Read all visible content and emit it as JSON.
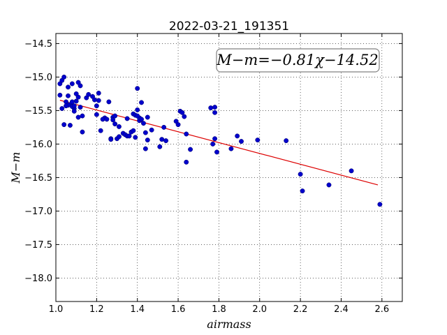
{
  "chart_data": {
    "type": "scatter",
    "title": "2022-03-21_191351",
    "xlabel": "airmass",
    "ylabel": "M−m",
    "xlim": [
      1.0,
      2.7
    ],
    "ylim": [
      -18.35,
      -14.35
    ],
    "y_inverted": true,
    "x_ticks": [
      1.0,
      1.2,
      1.4,
      1.6,
      1.8,
      2.0,
      2.2,
      2.4,
      2.6
    ],
    "x_tick_labels": [
      "1.0",
      "1.2",
      "1.4",
      "1.6",
      "1.8",
      "2.0",
      "2.2",
      "2.4",
      "2.6"
    ],
    "y_ticks": [
      -14.5,
      -15.0,
      -15.5,
      -16.0,
      -16.5,
      -17.0,
      -17.5,
      -18.0
    ],
    "y_tick_labels": [
      "−14.5",
      "−15.0",
      "−15.5",
      "−16.0",
      "−16.5",
      "−17.0",
      "−17.5",
      "−18.0"
    ],
    "grid": true,
    "annotation": "M−m=−0.81χ−14.52",
    "annotation_position": "top-right",
    "points_color": "#0000cc",
    "fit_color": "#dd0000",
    "fit": {
      "slope": -0.81,
      "intercept": -14.52,
      "x_range": [
        1.02,
        2.58
      ]
    },
    "x": [
      1.02,
      1.03,
      1.02,
      1.03,
      1.04,
      1.05,
      1.06,
      1.07,
      1.08,
      1.09,
      1.1,
      1.11,
      1.12,
      1.04,
      1.06,
      1.07,
      1.08,
      1.09,
      1.1,
      1.11,
      1.12,
      1.05,
      1.06,
      1.08,
      1.09,
      1.11,
      1.13,
      1.13,
      1.15,
      1.16,
      1.18,
      1.19,
      1.2,
      1.21,
      1.21,
      1.22,
      1.24,
      1.26,
      1.27,
      1.28,
      1.29,
      1.3,
      1.31,
      1.31,
      1.33,
      1.34,
      1.35,
      1.35,
      1.36,
      1.37,
      1.38,
      1.39,
      1.4,
      1.4,
      1.41,
      1.41,
      1.42,
      1.43,
      1.44,
      1.44,
      1.45,
      1.45,
      1.47,
      1.51,
      1.52,
      1.53,
      1.54,
      1.59,
      1.6,
      1.61,
      1.62,
      1.63,
      1.64,
      1.64,
      1.66,
      1.76,
      1.77,
      1.78,
      1.78,
      1.78,
      1.79,
      1.86,
      1.89,
      1.91,
      1.99,
      2.13,
      2.2,
      2.21,
      2.34,
      2.45,
      2.59,
      1.2,
      1.23,
      1.25,
      1.27,
      1.28,
      1.29,
      1.38,
      1.39,
      1.4,
      1.42
    ],
    "y": [
      -15.1,
      -15.05,
      -15.27,
      -15.47,
      -15.0,
      -15.37,
      -15.15,
      -15.41,
      -15.1,
      -15.47,
      -15.25,
      -15.08,
      -15.13,
      -15.71,
      -15.42,
      -15.72,
      -15.44,
      -15.51,
      -15.36,
      -15.6,
      -15.45,
      -15.43,
      -15.28,
      -15.37,
      -15.43,
      -15.3,
      -15.82,
      -15.58,
      -15.31,
      -15.26,
      -15.29,
      -15.34,
      -15.56,
      -15.24,
      -15.35,
      -15.8,
      -15.61,
      -15.37,
      -15.92,
      -15.6,
      -15.7,
      -15.92,
      -15.89,
      -15.74,
      -15.84,
      -15.86,
      -15.88,
      -15.62,
      -15.88,
      -15.82,
      -15.55,
      -15.9,
      -15.49,
      -15.17,
      -15.65,
      -15.61,
      -15.38,
      -15.69,
      -15.83,
      -16.07,
      -15.94,
      -15.6,
      -15.79,
      -16.04,
      -15.93,
      -15.75,
      -15.95,
      -15.66,
      -15.71,
      -15.51,
      -15.53,
      -15.59,
      -15.85,
      -16.27,
      -16.08,
      -15.46,
      -16.0,
      -15.45,
      -15.53,
      -15.92,
      -16.12,
      -16.07,
      -15.88,
      -15.96,
      -15.94,
      -15.95,
      -16.45,
      -16.7,
      -16.61,
      -16.4,
      -16.9,
      -15.43,
      -15.63,
      -15.63,
      -15.93,
      -15.64,
      -15.58,
      -15.8,
      -15.57,
      -15.58,
      -15.63
    ]
  }
}
